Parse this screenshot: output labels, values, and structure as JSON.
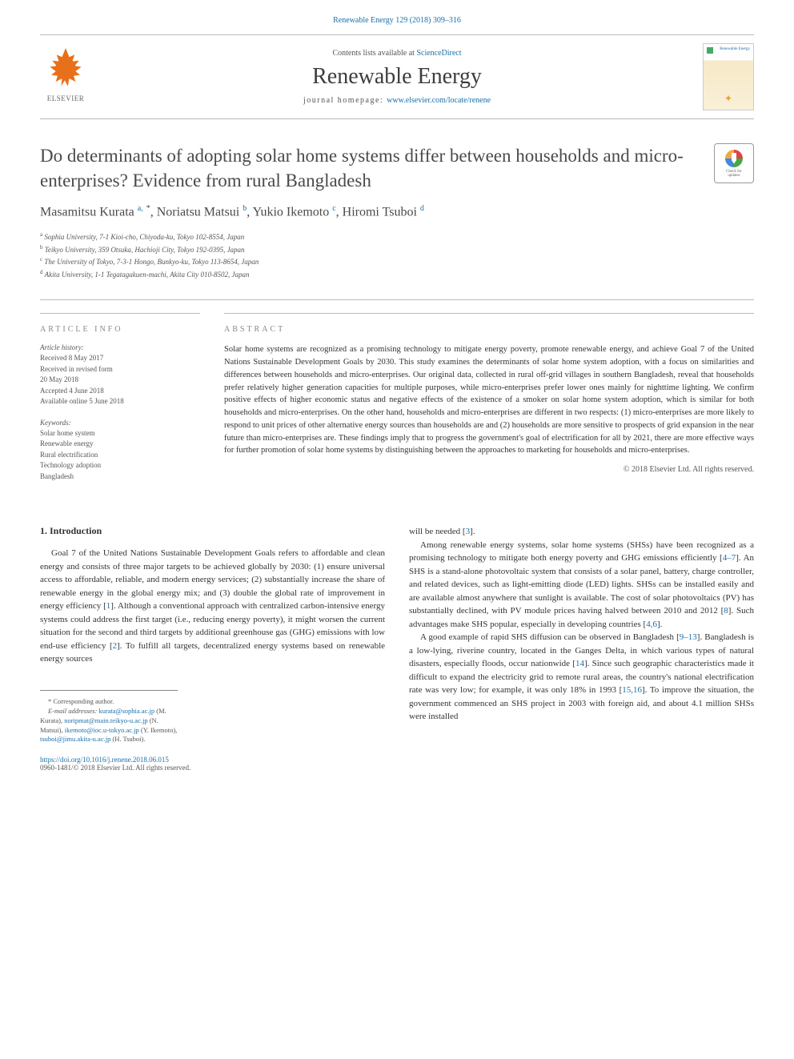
{
  "header": {
    "citation": "Renewable Energy 129 (2018) 309–316",
    "contents_prefix": "Contents lists available at ",
    "contents_link": "ScienceDirect",
    "journal_name": "Renewable Energy",
    "homepage_prefix": "journal homepage: ",
    "homepage_link": "www.elsevier.com/locate/renene",
    "publisher": "ELSEVIER",
    "cover_title": "Renewable Energy"
  },
  "updates_badge": {
    "line1": "Check for",
    "line2": "updates"
  },
  "article": {
    "title": "Do determinants of adopting solar home systems differ between households and micro-enterprises? Evidence from rural Bangladesh",
    "authors_html": "Masamitsu Kurata <span class='sup'>a,</span> <span class='sup-star'>*</span>, Noriatsu Matsui <span class='sup'>b</span>, Yukio Ikemoto <span class='sup'>c</span>, Hiromi Tsuboi <span class='sup'>d</span>",
    "affiliations": [
      "Sophia University, 7-1 Kioi-cho, Chiyoda-ku, Tokyo 102-8554, Japan",
      "Teikyo University, 359 Otsuka, Hachioji City, Tokyo 192-0395, Japan",
      "The University of Tokyo, 7-3-1 Hongo, Bunkyo-ku, Tokyo 113-8654, Japan",
      "Akita University, 1-1 Tegatagakuen-machi, Akita City 010-8502, Japan"
    ],
    "affiliation_markers": [
      "a",
      "b",
      "c",
      "d"
    ]
  },
  "info": {
    "heading": "ARTICLE INFO",
    "history_label": "Article history:",
    "history": "Received 8 May 2017\nReceived in revised form\n20 May 2018\nAccepted 4 June 2018\nAvailable online 5 June 2018",
    "keywords_label": "Keywords:",
    "keywords": "Solar home system\nRenewable energy\nRural electrification\nTechnology adoption\nBangladesh"
  },
  "abstract": {
    "heading": "ABSTRACT",
    "text": "Solar home systems are recognized as a promising technology to mitigate energy poverty, promote renewable energy, and achieve Goal 7 of the United Nations Sustainable Development Goals by 2030. This study examines the determinants of solar home system adoption, with a focus on similarities and differences between households and micro-enterprises. Our original data, collected in rural off-grid villages in southern Bangladesh, reveal that households prefer relatively higher generation capacities for multiple purposes, while micro-enterprises prefer lower ones mainly for nighttime lighting. We confirm positive effects of higher economic status and negative effects of the existence of a smoker on solar home system adoption, which is similar for both households and micro-enterprises. On the other hand, households and micro-enterprises are different in two respects: (1) micro-enterprises are more likely to respond to unit prices of other alternative energy sources than households are and (2) households are more sensitive to prospects of grid expansion in the near future than micro-enterprises are. These findings imply that to progress the government's goal of electrification for all by 2021, there are more effective ways for further promotion of solar home systems by distinguishing between the approaches to marketing for households and micro-enterprises.",
    "copyright": "© 2018 Elsevier Ltd. All rights reserved."
  },
  "body": {
    "section_heading": "1. Introduction",
    "col1_p1": "Goal 7 of the United Nations Sustainable Development Goals refers to affordable and clean energy and consists of three major targets to be achieved globally by 2030: (1) ensure universal access to affordable, reliable, and modern energy services; (2) substantially increase the share of renewable energy in the global energy mix; and (3) double the global rate of improvement in energy efficiency [1]. Although a conventional approach with centralized carbon-intensive energy systems could address the first target (i.e., reducing energy poverty), it might worsen the current situation for the second and third targets by additional greenhouse gas (GHG) emissions with low end-use efficiency [2]. To fulfill all targets, decentralized energy systems based on renewable energy sources",
    "col2_p1": "will be needed [3].",
    "col2_p2": "Among renewable energy systems, solar home systems (SHSs) have been recognized as a promising technology to mitigate both energy poverty and GHG emissions efficiently [4–7]. An SHS is a stand-alone photovoltaic system that consists of a solar panel, battery, charge controller, and related devices, such as light-emitting diode (LED) lights. SHSs can be installed easily and are available almost anywhere that sunlight is available. The cost of solar photovoltaics (PV) has substantially declined, with PV module prices having halved between 2010 and 2012 [8]. Such advantages make SHS popular, especially in developing countries [4,6].",
    "col2_p3": "A good example of rapid SHS diffusion can be observed in Bangladesh [9–13]. Bangladesh is a low-lying, riverine country, located in the Ganges Delta, in which various types of natural disasters, especially floods, occur nationwide [14]. Since such geographic characteristics made it difficult to expand the electricity grid to remote rural areas, the country's national electrification rate was very low; for example, it was only 18% in 1993 [15,16]. To improve the situation, the government commenced an SHS project in 2003 with foreign aid, and about 4.1 million SHSs were installed"
  },
  "footnotes": {
    "corresponding": "* Corresponding author.",
    "emails_label": "E-mail addresses: ",
    "emails": "kurata@sophia.ac.jp (M. Kurata), noripmat@main.teikyo-u.ac.jp (N. Matsui), ikemoto@ioc.u-tokyo.ac.jp (Y. Ikemoto), tsuboi@jimu.akita-u.ac.jp (H. Tsuboi)."
  },
  "footer": {
    "doi": "https://doi.org/10.1016/j.renene.2018.06.015",
    "rights": "0960-1481/© 2018 Elsevier Ltd. All rights reserved."
  },
  "colors": {
    "link": "#1a6faa",
    "text": "#333333",
    "muted": "#555555",
    "elsevier_orange": "#e8701a"
  }
}
